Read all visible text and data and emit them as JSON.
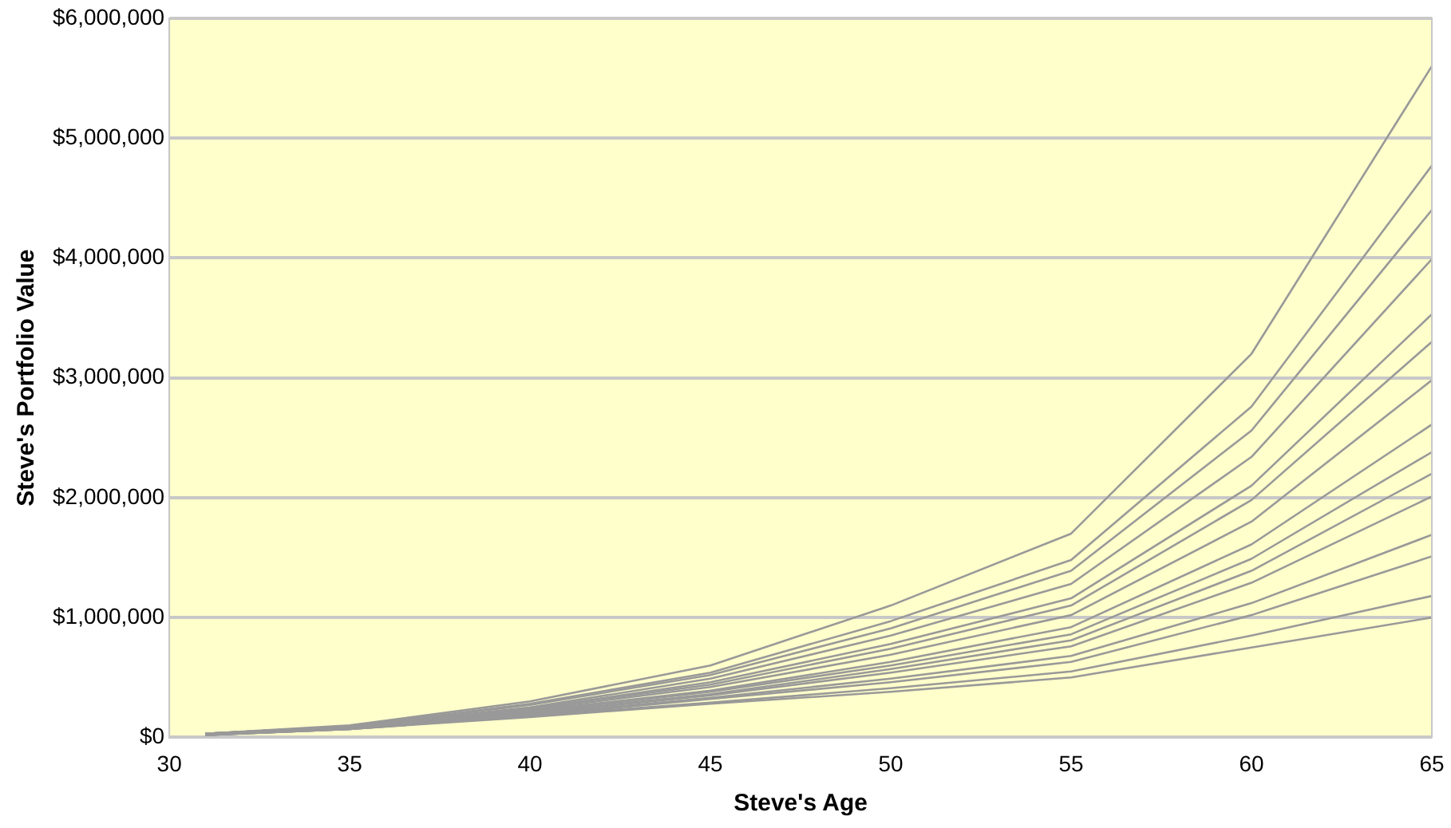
{
  "chart_data": {
    "type": "line",
    "xlabel": "Steve's Age",
    "ylabel": "Steve's Portfolio Value",
    "x": [
      31,
      35,
      40,
      45,
      50,
      55,
      60,
      65
    ],
    "xlim": [
      30,
      65
    ],
    "xticks": [
      30,
      35,
      40,
      45,
      50,
      55,
      60,
      65
    ],
    "ylim": [
      0,
      6000000
    ],
    "yticks": [
      {
        "value": 0,
        "label": "$0"
      },
      {
        "value": 1000000,
        "label": "$1,000,000"
      },
      {
        "value": 2000000,
        "label": "$2,000,000"
      },
      {
        "value": 3000000,
        "label": "$3,000,000"
      },
      {
        "value": 4000000,
        "label": "$4,000,000"
      },
      {
        "value": 5000000,
        "label": "$5,000,000"
      },
      {
        "value": 6000000,
        "label": "$6,000,000"
      }
    ],
    "grid": "y",
    "legend": false,
    "marker": "none",
    "line_style": "solid",
    "series": [
      {
        "color": "#999999",
        "values": [
          30000,
          100000,
          300000,
          600000,
          1100000,
          1700000,
          3200000,
          5600000
        ]
      },
      {
        "color": "#999999",
        "values": [
          30000,
          90000,
          280000,
          540000,
          970000,
          1480000,
          2760000,
          4770000
        ]
      },
      {
        "color": "#999999",
        "values": [
          30000,
          90000,
          270000,
          520000,
          910000,
          1390000,
          2560000,
          4400000
        ]
      },
      {
        "color": "#999999",
        "values": [
          30000,
          90000,
          250000,
          490000,
          850000,
          1280000,
          2340000,
          3990000
        ]
      },
      {
        "color": "#999999",
        "values": [
          30000,
          90000,
          240000,
          460000,
          780000,
          1160000,
          2100000,
          3530000
        ]
      },
      {
        "color": "#999999",
        "values": [
          30000,
          90000,
          240000,
          440000,
          740000,
          1100000,
          1980000,
          3300000
        ]
      },
      {
        "color": "#999999",
        "values": [
          20000,
          80000,
          230000,
          420000,
          690000,
          1020000,
          1800000,
          2980000
        ]
      },
      {
        "color": "#999999",
        "values": [
          20000,
          80000,
          220000,
          390000,
          630000,
          920000,
          1610000,
          2610000
        ]
      },
      {
        "color": "#999999",
        "values": [
          20000,
          80000,
          210000,
          380000,
          600000,
          860000,
          1490000,
          2380000
        ]
      },
      {
        "color": "#999999",
        "values": [
          20000,
          80000,
          200000,
          360000,
          570000,
          810000,
          1390000,
          2200000
        ]
      },
      {
        "color": "#999999",
        "values": [
          20000,
          80000,
          200000,
          350000,
          540000,
          760000,
          1290000,
          2010000
        ]
      },
      {
        "color": "#999999",
        "values": [
          20000,
          70000,
          190000,
          330000,
          490000,
          680000,
          1120000,
          1690000
        ]
      },
      {
        "color": "#999999",
        "values": [
          20000,
          70000,
          180000,
          320000,
          460000,
          630000,
          1020000,
          1510000
        ]
      },
      {
        "color": "#999999",
        "values": [
          20000,
          70000,
          180000,
          290000,
          410000,
          550000,
          850000,
          1180000
        ]
      },
      {
        "color": "#999999",
        "values": [
          20000,
          70000,
          170000,
          280000,
          380000,
          500000,
          750000,
          1000000
        ]
      }
    ]
  }
}
